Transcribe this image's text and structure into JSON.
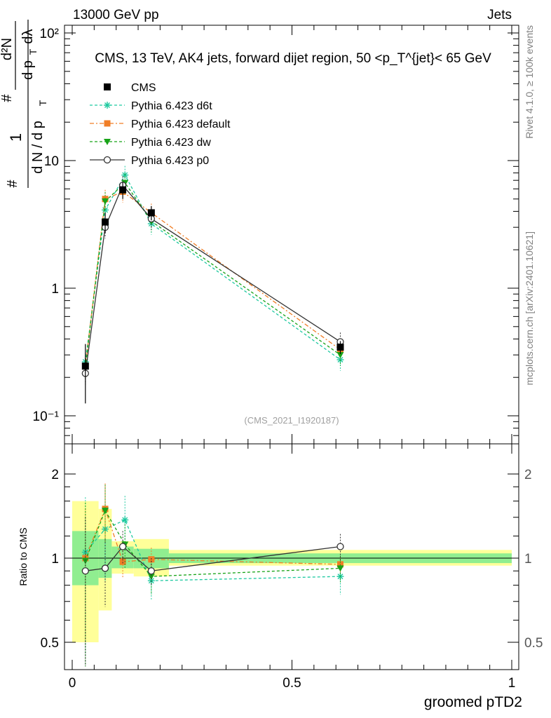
{
  "header": {
    "energy": "13000 GeV pp",
    "category": "Jets",
    "side_version": "Rivet 4.1.0, ≥ 100k events",
    "side_source": "mcplots.cern.ch [arXiv:2401.10621]"
  },
  "chart_data": {
    "type": "line",
    "title": "CMS, 13 TeV, AK4 jets, forward dijet region, 50 <p_T^{jet}< 65 GeV",
    "analysis_id": "(CMS_2021_I1920187)",
    "xlabel": "groomed pTD2",
    "ylabel": "1/(dN/dp_T) d²N/(dp_T dλ)",
    "ylabel_parts": {
      "one": "1",
      "denom": "d N / d p",
      "sub": "T",
      "hash": "#",
      "numer": "d²N",
      "numer_denom": "d p",
      "lambda": "dλ"
    },
    "ratio_ylabel": "Ratio to CMS",
    "xlim": [
      0,
      1
    ],
    "ylim": [
      0.06,
      130
    ],
    "yscale": "log",
    "ratio_ylim": [
      0.4,
      2.3
    ],
    "x_ticks": [
      "0",
      "0.5",
      "1"
    ],
    "y_ticks": [
      "10⁻¹",
      "1",
      "10",
      "10²"
    ],
    "ratio_ticks": [
      "0.5",
      "1",
      "2"
    ],
    "bin_edges": [
      0,
      0.06,
      0.09,
      0.14,
      0.22,
      1.0
    ],
    "data": {
      "name": "CMS",
      "x": [
        0.03,
        0.075,
        0.115,
        0.18,
        0.61
      ],
      "y": [
        0.245,
        3.3,
        5.9,
        3.9,
        0.345
      ],
      "yerr": [
        0.12,
        0.6,
        0.9,
        0.5,
        0.04
      ],
      "ratio_band_inner": [
        [
          0.8,
          1.25
        ],
        [
          0.85,
          1.17
        ],
        [
          0.92,
          1.1
        ],
        [
          0.92,
          1.08
        ],
        [
          0.96,
          1.04
        ]
      ],
      "ratio_band_outer": [
        [
          0.5,
          1.6
        ],
        [
          0.65,
          1.5
        ],
        [
          0.88,
          1.15
        ],
        [
          0.86,
          1.17
        ],
        [
          0.94,
          1.07
        ]
      ]
    },
    "series": [
      {
        "name": "Pythia 6.423 d6t",
        "color": "#1ec9a0",
        "marker": "star",
        "dash": "4,3",
        "x": [
          0.03,
          0.075,
          0.12,
          0.18,
          0.61
        ],
        "values": [
          0.265,
          4.1,
          7.7,
          3.2,
          0.275
        ],
        "ratio": [
          1.05,
          1.27,
          1.37,
          0.83,
          0.86
        ],
        "ratio_err": [
          0.6,
          0.45,
          0.3,
          0.12,
          0.12
        ]
      },
      {
        "name": "Pythia 6.423 default",
        "color": "#f07e26",
        "marker": "square",
        "dash": "6,3,2,3",
        "x": [
          0.03,
          0.075,
          0.115,
          0.18,
          0.61
        ],
        "values": [
          0.245,
          5.0,
          5.7,
          3.9,
          0.33
        ],
        "ratio": [
          1.0,
          1.5,
          0.97,
          0.99,
          0.95
        ],
        "ratio_err": [
          0.5,
          0.35,
          0.12,
          0.1,
          0.06
        ]
      },
      {
        "name": "Pythia 6.423 dw",
        "color": "#17a317",
        "marker": "triangle",
        "dash": "4,3",
        "x": [
          0.03,
          0.075,
          0.12,
          0.18,
          0.61
        ],
        "values": [
          0.24,
          4.8,
          6.7,
          3.35,
          0.3
        ],
        "ratio": [
          0.98,
          1.48,
          1.12,
          0.86,
          0.92
        ],
        "ratio_err": [
          0.6,
          0.35,
          0.2,
          0.12,
          0.1
        ]
      },
      {
        "name": "Pythia 6.423 p0",
        "color": "#333333",
        "marker": "circle",
        "dash": "",
        "x": [
          0.03,
          0.075,
          0.115,
          0.18,
          0.61
        ],
        "values": [
          0.215,
          3.0,
          6.4,
          3.5,
          0.38
        ],
        "ratio": [
          0.9,
          0.92,
          1.1,
          0.9,
          1.1
        ],
        "ratio_err": [
          0.5,
          0.25,
          0.15,
          0.1,
          0.12
        ]
      }
    ],
    "legend_position": "top-left"
  }
}
